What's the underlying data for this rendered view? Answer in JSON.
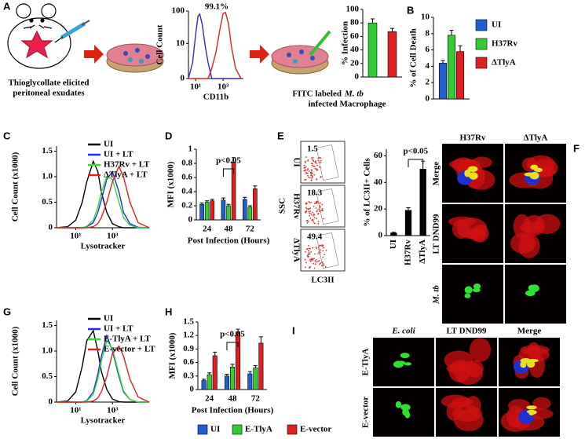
{
  "panel_letters": [
    "A",
    "B",
    "C",
    "D",
    "E",
    "F",
    "G",
    "H",
    "I"
  ],
  "panel_a": {
    "mouse_caption": [
      "Thioglycollate elicited",
      "peritoneal exudates"
    ],
    "macrophage_caption": {
      "line1": "FITC labeled",
      "italic": "M. tb",
      "line2": "infected Macrophage"
    }
  },
  "panel_e": {
    "ylabel": "SSC",
    "xlabel": "LC3II",
    "rows": [
      {
        "label": "UI",
        "value": 1.5
      },
      {
        "label": "H37Rv",
        "value": 18.3
      },
      {
        "label": "ΔTlyA",
        "value": 49.4
      }
    ]
  },
  "panel_f": {
    "columns": [
      "H37Rv",
      "ΔTlyA"
    ],
    "rows": [
      "Merge",
      "LT DND99",
      "M. tb"
    ]
  },
  "panel_i": {
    "columns": [
      "E. coli",
      "LT DND99",
      "Merge"
    ],
    "rows": [
      "E-TlyA",
      "E-vector"
    ]
  },
  "chart_data": [
    {
      "type": "line",
      "ylabel": "Cell Count",
      "xlabel": "CD11b",
      "annotation": "99.1%",
      "x_log": true,
      "y_scale": "log1p",
      "xlim": [
        3,
        30000
      ],
      "xticks": [
        {
          "value": 10,
          "label": "10¹"
        },
        {
          "value": 1000,
          "label": "10³"
        }
      ],
      "ylim": [
        0,
        100
      ],
      "yticks": [
        0,
        10,
        100
      ],
      "x": [
        3,
        6,
        10,
        15,
        20,
        30,
        50,
        80,
        150,
        300,
        600,
        1000,
        1500,
        2500,
        4000,
        8000,
        20000
      ],
      "series": [
        {
          "color": "#2a2ad0",
          "values": [
            0,
            2,
            20,
            70,
            80,
            40,
            8,
            2,
            0,
            0,
            0,
            0,
            0,
            0,
            0,
            0,
            0
          ]
        },
        {
          "color": "#e02020",
          "values": [
            0,
            0,
            0,
            0,
            0,
            0,
            0,
            0,
            1,
            5,
            30,
            85,
            90,
            40,
            8,
            1,
            0
          ]
        }
      ]
    },
    {
      "type": "bar",
      "ylabel": "% Infection",
      "ylim": [
        0,
        100
      ],
      "yticks": [
        0,
        20,
        40,
        60,
        80,
        100
      ],
      "values": [
        80,
        67
      ],
      "errors": [
        6,
        5
      ],
      "colors": [
        "#33cc33",
        "#e02020"
      ]
    },
    {
      "type": "bar",
      "ylabel": "% of Cell Death",
      "ylim": [
        0,
        10
      ],
      "yticks": [
        0,
        2,
        4,
        6,
        8,
        10
      ],
      "legend": "right",
      "series": [
        {
          "name": "UI",
          "color": "#1f5fd0",
          "values": [
            4.4
          ],
          "errors": [
            0.3
          ]
        },
        {
          "name": "H37Rv",
          "color": "#33cc33",
          "values": [
            7.8
          ],
          "errors": [
            0.6
          ]
        },
        {
          "name": "ΔTlyA",
          "color": "#e02020",
          "values": [
            5.8
          ],
          "errors": [
            0.7
          ]
        }
      ]
    },
    {
      "type": "line",
      "ylabel": "Cell Count (x1000)",
      "xlabel": "Lysotracker",
      "x_log": true,
      "legend": "top-right",
      "xlim": [
        30,
        10000
      ],
      "xticks": [
        {
          "value": 100,
          "label": "10¹"
        },
        {
          "value": 1000,
          "label": "10³"
        }
      ],
      "ylim": [
        0,
        1.6
      ],
      "yticks": [
        0,
        0.5,
        {
          "value": 1,
          "label": "1.0"
        },
        1.5
      ],
      "x": [
        30,
        60,
        100,
        150,
        200,
        300,
        400,
        500,
        700,
        1000,
        1500,
        2000,
        3000,
        5000,
        10000
      ],
      "series": [
        {
          "name": "UI",
          "color": "#000000",
          "values": [
            0,
            0.02,
            0.15,
            0.5,
            0.9,
            1.3,
            1.1,
            0.7,
            0.3,
            0.08,
            0.02,
            0,
            0,
            0,
            0
          ]
        },
        {
          "name": "UI + LT",
          "color": "#1f2fe0",
          "values": [
            0,
            0,
            0,
            0,
            0.02,
            0.1,
            0.3,
            0.55,
            0.95,
            1.1,
            0.7,
            0.3,
            0.08,
            0.01,
            0
          ]
        },
        {
          "name": "H37Rv + LT",
          "color": "#33dd33",
          "values": [
            0,
            0,
            0,
            0,
            0.03,
            0.15,
            0.4,
            0.7,
            1.0,
            0.95,
            0.5,
            0.2,
            0.05,
            0,
            0
          ]
        },
        {
          "name": "ΔTlyA + LT",
          "color": "#e02020",
          "values": [
            0,
            0,
            0,
            0,
            0,
            0.02,
            0.08,
            0.2,
            0.5,
            0.9,
            1.2,
            1.0,
            0.5,
            0.1,
            0
          ]
        }
      ]
    },
    {
      "type": "bar",
      "ylabel": "MFI (x1000)",
      "xlabel": "Post Infection (Hours)",
      "annotation": "p<0.05",
      "categories": [
        "24",
        "48",
        "72"
      ],
      "ylim": [
        0,
        1
      ],
      "yticks": [
        0,
        0.2,
        0.4,
        0.6,
        0.8,
        1
      ],
      "series": [
        {
          "color": "#1f5fd0",
          "values": [
            0.22,
            0.28,
            0.29
          ],
          "errors": [
            0.02,
            0.03,
            0.03
          ]
        },
        {
          "color": "#33cc33",
          "values": [
            0.25,
            0.2,
            0.18
          ],
          "errors": [
            0.02,
            0.02,
            0.02
          ]
        },
        {
          "color": "#e02020",
          "values": [
            0.27,
            0.82,
            0.44
          ],
          "errors": [
            0.02,
            0.06,
            0.04
          ]
        }
      ]
    },
    {
      "type": "bar",
      "ylabel": "% of LC3II+ Cells",
      "annotation": "p<0.05",
      "categories": [
        "UI",
        "H37Rv",
        "ΔTlyA"
      ],
      "ylim": [
        0,
        65
      ],
      "yticks": [
        0,
        20,
        40,
        60
      ],
      "values": [
        2,
        19,
        50
      ],
      "errors": [
        0.5,
        2,
        6
      ],
      "colors": [
        "#000000",
        "#000000",
        "#000000"
      ]
    },
    {
      "type": "line",
      "ylabel": "Cell Count (x1000)",
      "xlabel": "Lysotracker",
      "x_log": true,
      "legend": "top-right",
      "xlim": [
        30,
        10000
      ],
      "xticks": [
        {
          "value": 100,
          "label": "10¹"
        },
        {
          "value": 1000,
          "label": "10³"
        }
      ],
      "ylim": [
        0,
        1.6
      ],
      "yticks": [
        0,
        0.5,
        {
          "value": 1,
          "label": "1.0"
        },
        1.5
      ],
      "x": [
        30,
        60,
        100,
        150,
        200,
        300,
        400,
        500,
        700,
        1000,
        1500,
        2000,
        3000,
        5000,
        10000
      ],
      "series": [
        {
          "name": "UI",
          "color": "#000000",
          "values": [
            0,
            0.02,
            0.2,
            0.7,
            1.2,
            1.4,
            1.0,
            0.6,
            0.25,
            0.06,
            0.01,
            0,
            0,
            0,
            0
          ]
        },
        {
          "name": "UI + LT",
          "color": "#1f2fe0",
          "values": [
            0,
            0,
            0,
            0,
            0.03,
            0.2,
            0.55,
            0.9,
            1.3,
            1.0,
            0.5,
            0.2,
            0.05,
            0,
            0
          ]
        },
        {
          "name": "E-TlyA + LT",
          "color": "#33dd33",
          "values": [
            0,
            0,
            0,
            0,
            0.02,
            0.15,
            0.45,
            0.8,
            1.2,
            1.05,
            0.55,
            0.22,
            0.05,
            0,
            0
          ]
        },
        {
          "name": "E-vector + LT",
          "color": "#e02020",
          "values": [
            0,
            0,
            0,
            0,
            0,
            0.02,
            0.08,
            0.2,
            0.5,
            0.95,
            1.1,
            0.9,
            0.45,
            0.1,
            0
          ]
        }
      ]
    },
    {
      "type": "bar",
      "ylabel": "MFI (x1000)",
      "xlabel": "Post Infection (Hours)",
      "annotation": "p<0.05",
      "legend": "bottom",
      "categories": [
        "24",
        "48",
        "72"
      ],
      "ylim": [
        0,
        1.5
      ],
      "yticks": [
        0,
        0.3,
        0.6,
        0.9,
        1.2,
        1.5
      ],
      "series": [
        {
          "name": "UI",
          "color": "#1f5fd0",
          "values": [
            0.2,
            0.3,
            0.35
          ],
          "errors": [
            0.03,
            0.04,
            0.05
          ]
        },
        {
          "name": "E-TlyA",
          "color": "#33cc33",
          "values": [
            0.33,
            0.5,
            0.48
          ],
          "errors": [
            0.04,
            0.06,
            0.05
          ]
        },
        {
          "name": "E-vector",
          "color": "#e02020",
          "values": [
            0.75,
            1.28,
            1.03
          ],
          "errors": [
            0.08,
            0.06,
            0.14
          ]
        }
      ]
    }
  ]
}
